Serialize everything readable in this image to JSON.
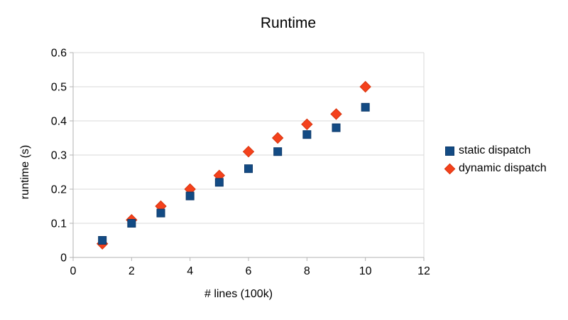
{
  "window": {
    "background": "#ffffff"
  },
  "chart_data": {
    "type": "scatter",
    "title": "Runtime",
    "xlabel": "# lines (100k)",
    "ylabel": "runtime (s)",
    "xlim": [
      0,
      12
    ],
    "ylim": [
      0,
      0.6
    ],
    "xticks": [
      0,
      2,
      4,
      6,
      8,
      10,
      12
    ],
    "yticks": [
      0,
      0.1,
      0.2,
      0.3,
      0.4,
      0.5,
      0.6
    ],
    "xtick_labels": [
      "0",
      "2",
      "4",
      "6",
      "8",
      "10",
      "12"
    ],
    "ytick_labels": [
      "0",
      "0.1",
      "0.2",
      "0.3",
      "0.4",
      "0.5",
      "0.6"
    ],
    "grid": "horizontal-only",
    "legend_position": "right",
    "x": [
      1,
      2,
      3,
      4,
      5,
      6,
      7,
      8,
      9,
      10
    ],
    "series": [
      {
        "name": "static dispatch",
        "marker": "square",
        "color": "#134b84",
        "border": "#0d3a6b",
        "values": [
          0.05,
          0.1,
          0.13,
          0.18,
          0.22,
          0.26,
          0.31,
          0.36,
          0.38,
          0.44
        ]
      },
      {
        "name": "dynamic dispatch",
        "marker": "diamond",
        "color": "#f4411c",
        "border": "#d8350e",
        "values": [
          0.04,
          0.11,
          0.15,
          0.2,
          0.24,
          0.31,
          0.35,
          0.39,
          0.42,
          0.5
        ]
      }
    ],
    "colors": {
      "gridline": "#d9d9d9",
      "axis": "#b3b3b3",
      "tick_text": "#000000",
      "title_text": "#000000"
    }
  }
}
